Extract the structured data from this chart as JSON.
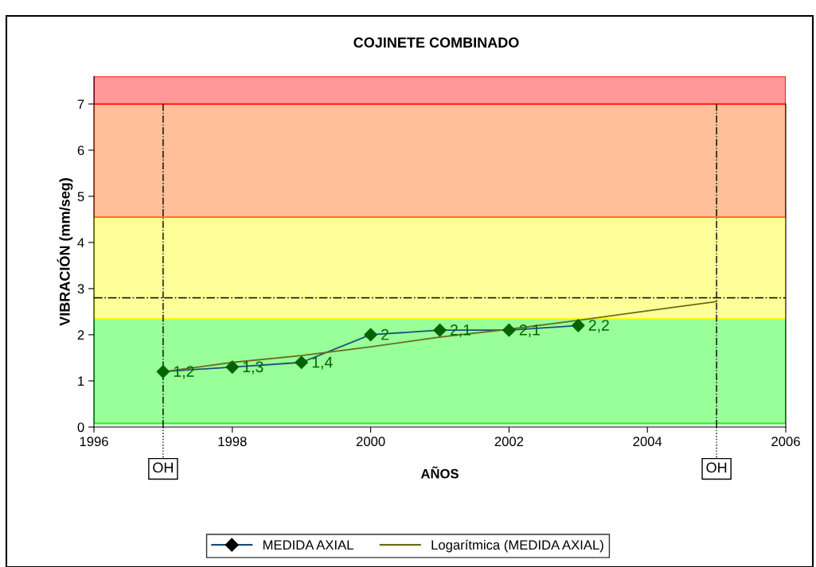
{
  "chart_data": {
    "type": "line",
    "title": "COJINETE COMBINADO",
    "xlabel": "AÑOS",
    "ylabel": "VIBRACIÓN (mm/seg)",
    "xlim": [
      1996,
      2006
    ],
    "xticks": [
      1996,
      1998,
      2000,
      2002,
      2004,
      2006
    ],
    "ylim": [
      0,
      7.6
    ],
    "yticks": [
      0,
      1,
      2,
      3,
      4,
      5,
      6,
      7
    ],
    "grid": false,
    "legend": "bottom",
    "series": [
      {
        "name": "MEDIDA AXIAL",
        "color": "#1f4e79",
        "colors": [
          "#006400",
          "#006400",
          "#006400",
          "#006400",
          "#006400",
          "#006400",
          "#006400"
        ],
        "marker": "diamond",
        "x": [
          1997,
          1998,
          1999,
          2000,
          2001,
          2002,
          2003
        ],
        "values": [
          1.2,
          1.3,
          1.4,
          2,
          2.1,
          2.1,
          2.2
        ],
        "value_labels": [
          "1,2",
          "1,3",
          "1,4",
          "2",
          "2,1",
          "2,1",
          "2,2"
        ]
      },
      {
        "name": "Logarítmica (MEDIDA AXIAL)",
        "color": "#6b6b1a",
        "marker": "none",
        "x": [
          1997,
          1998,
          1999,
          2000,
          2001,
          2002,
          2003,
          2004,
          2005
        ],
        "values": [
          1.2,
          1.4,
          1.55,
          1.74,
          1.95,
          2.12,
          2.31,
          2.52,
          2.72
        ]
      }
    ],
    "bands": [
      {
        "axis": "y",
        "from": 0.08,
        "to": 2.35,
        "color": "#99ff99"
      },
      {
        "axis": "y",
        "from": 2.35,
        "to": 4.55,
        "color": "#ffff99"
      },
      {
        "axis": "y",
        "from": 4.55,
        "to": 7.0,
        "color": "#ffbf99"
      },
      {
        "axis": "y",
        "from": 7.0,
        "to": 7.6,
        "color": "#ff9999"
      }
    ],
    "ref_lines": [
      {
        "axis": "y",
        "value": 2.8,
        "line_style": "dashdot",
        "color": "#000000"
      },
      {
        "axis": "x",
        "value": 1997,
        "label": "OH",
        "line_style": "dashdot",
        "color": "#000000"
      },
      {
        "axis": "x",
        "value": 2005,
        "label": "OH",
        "line_style": "dashdot",
        "color": "#000000"
      }
    ]
  }
}
